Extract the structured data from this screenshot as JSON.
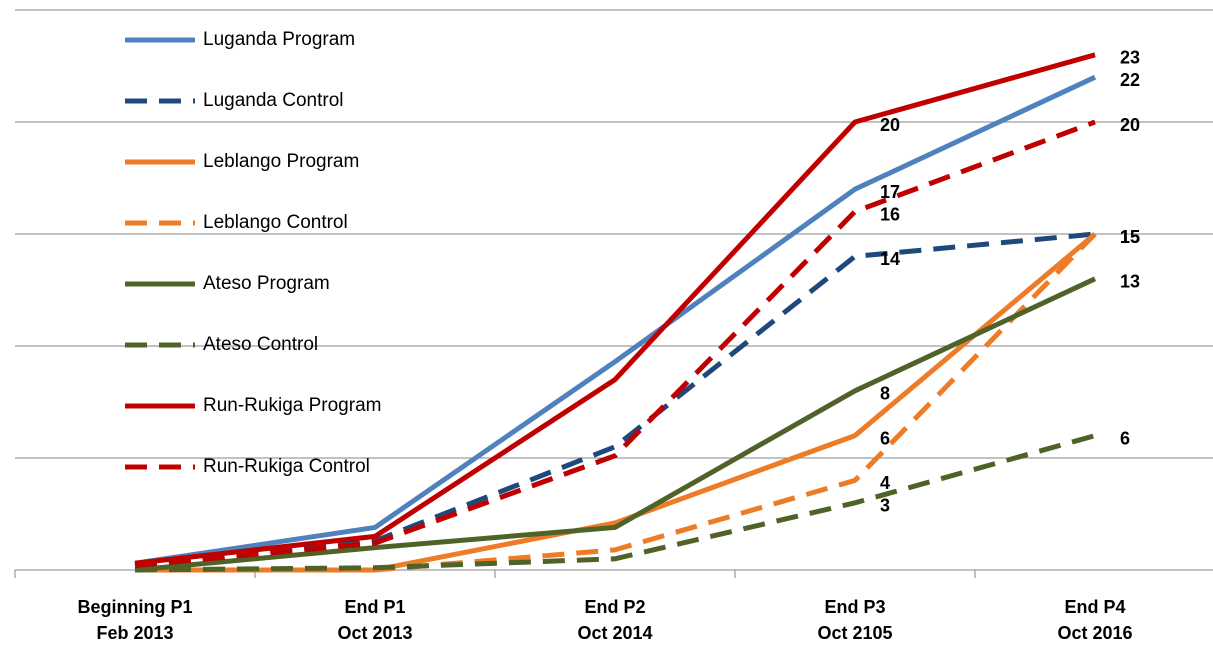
{
  "chart_data": {
    "type": "line",
    "categories": [
      [
        "Beginning P1",
        "Feb 2013"
      ],
      [
        "End P1",
        "Oct 2013"
      ],
      [
        "End P2",
        "Oct 2014"
      ],
      [
        "End P3",
        "Oct 2105"
      ],
      [
        "End P4",
        "Oct 2016"
      ]
    ],
    "series": [
      {
        "name": "Luganda Program",
        "color": "#4f81bd",
        "dash": false,
        "values": [
          0.3,
          1.9,
          9.3,
          17,
          22
        ]
      },
      {
        "name": "Luganda Control",
        "color": "#1f497d",
        "dash": true,
        "values": [
          0.2,
          1.3,
          5.5,
          14,
          15
        ]
      },
      {
        "name": "Leblango Program",
        "color": "#ee7b26",
        "dash": false,
        "values": [
          0,
          0,
          2.1,
          6,
          15
        ]
      },
      {
        "name": "Leblango Control",
        "color": "#ee7b26",
        "dash": true,
        "values": [
          0,
          0,
          0.9,
          4,
          15
        ]
      },
      {
        "name": "Ateso Program",
        "color": "#4f6228",
        "dash": false,
        "values": [
          0,
          1.0,
          1.9,
          8,
          13
        ]
      },
      {
        "name": "Ateso Control",
        "color": "#4f6228",
        "dash": true,
        "values": [
          0,
          0.1,
          0.5,
          3,
          6
        ]
      },
      {
        "name": "Run-Rukiga Program",
        "color": "#c00000",
        "dash": false,
        "values": [
          0.3,
          1.5,
          8.5,
          20,
          23
        ]
      },
      {
        "name": "Run-Rukiga Control",
        "color": "#c00000",
        "dash": true,
        "values": [
          0.2,
          1.2,
          5.1,
          16,
          20
        ]
      }
    ],
    "ylim": [
      0,
      25
    ],
    "yticks": [
      0,
      5,
      10,
      15,
      20,
      25
    ],
    "grid": true,
    "legend": "top-left"
  }
}
